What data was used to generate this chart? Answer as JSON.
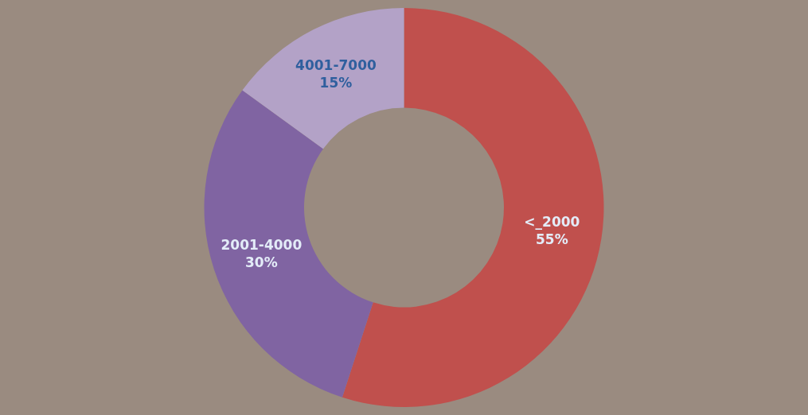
{
  "chart_data": {
    "type": "donut",
    "categories": [
      "<_2000",
      "2001-4000",
      "4001-7000"
    ],
    "values": [
      55,
      30,
      15
    ],
    "colors": [
      "#c0504d",
      "#8064a2",
      "#b3a2c7"
    ],
    "value_labels": [
      "55%",
      "30%",
      "15%"
    ],
    "legend": false
  }
}
